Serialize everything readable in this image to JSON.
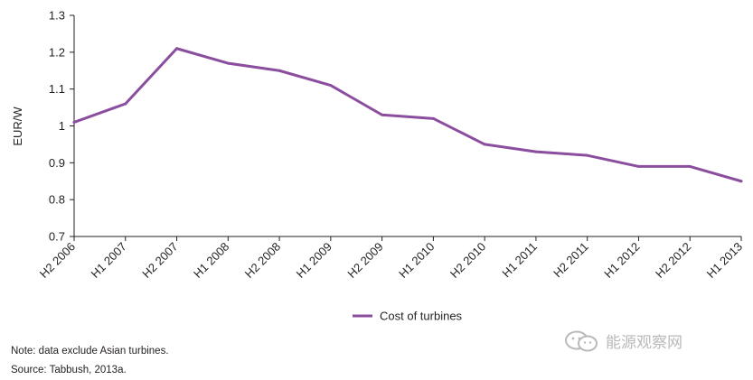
{
  "chart_data": {
    "type": "line",
    "categories": [
      "H2 2006",
      "H1 2007",
      "H2 2007",
      "H1 2008",
      "H2 2008",
      "H1 2009",
      "H2 2009",
      "H1 2010",
      "H2 2010",
      "H1 2011",
      "H2 2011",
      "H1 2012",
      "H2 2012",
      "H1 2013"
    ],
    "series": [
      {
        "name": "Cost of turbines",
        "values": [
          1.01,
          1.06,
          1.21,
          1.17,
          1.15,
          1.11,
          1.03,
          1.02,
          0.95,
          0.93,
          0.92,
          0.89,
          0.89,
          0.85
        ],
        "color": "#8b4e9f"
      }
    ],
    "ylabel": "EUR/W",
    "xlabel": "",
    "ylim": [
      0.7,
      1.3
    ],
    "yticks": [
      0.7,
      0.8,
      0.9,
      1,
      1.1,
      1.2,
      1.3
    ],
    "ytick_labels": [
      "0.7",
      "0.8",
      "0.9",
      "1",
      "1.1",
      "1.2",
      "1.3"
    ],
    "grid": false,
    "legend_position": "bottom-center"
  },
  "notes": {
    "note": "Note: data exclude Asian turbines.",
    "source": "Source: Tabbush, 2013a."
  },
  "watermark": {
    "text": "能源观察网",
    "icon": "wechat-icon"
  },
  "colors": {
    "series_line": "#8b4e9f",
    "axis": "#231f20",
    "watermark": "#b9b9b9"
  }
}
